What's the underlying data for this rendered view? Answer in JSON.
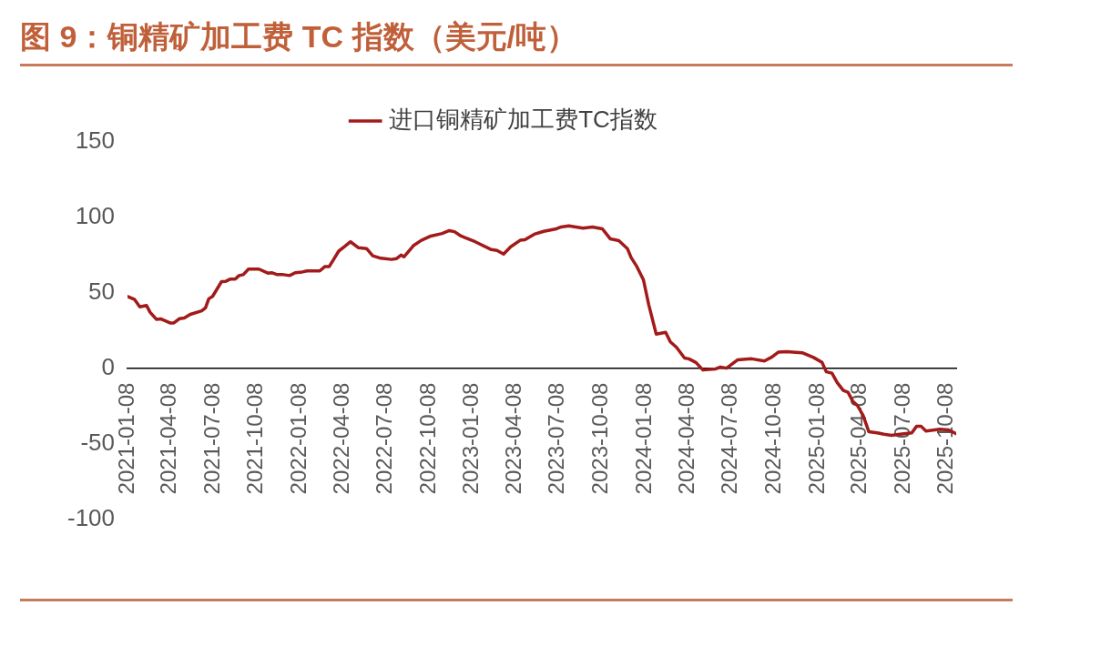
{
  "chart_data": {
    "type": "line",
    "title": "图 9：铜精矿加工费 TC 指数（美元/吨）",
    "x": [
      "2021-01-08",
      "2021-01-23",
      "2021-02-03",
      "2021-02-17",
      "2021-02-25",
      "2021-03-10",
      "2021-03-20",
      "2021-04-08",
      "2021-04-16",
      "2021-04-28",
      "2021-05-08",
      "2021-05-21",
      "2021-06-14",
      "2021-06-22",
      "2021-06-29",
      "2021-07-07",
      "2021-07-26",
      "2021-08-04",
      "2021-08-13",
      "2021-08-24",
      "2021-09-01",
      "2021-09-10",
      "2021-09-21",
      "2021-10-13",
      "2021-11-01",
      "2021-11-09",
      "2021-11-21",
      "2021-12-04",
      "2021-12-17",
      "2021-12-29",
      "2022-01-13",
      "2022-01-23",
      "2022-02-19",
      "2022-03-02",
      "2022-03-11",
      "2022-03-20",
      "2022-03-31",
      "2022-04-12",
      "2022-04-25",
      "2022-05-12",
      "2022-05-29",
      "2022-06-11",
      "2022-06-28",
      "2022-07-21",
      "2022-07-31",
      "2022-08-10",
      "2022-08-16",
      "2022-09-05",
      "2022-09-22",
      "2022-10-12",
      "2022-11-05",
      "2022-11-20",
      "2022-12-01",
      "2022-12-15",
      "2023-01-14",
      "2023-02-17",
      "2023-03-01",
      "2023-03-15",
      "2023-03-30",
      "2023-04-19",
      "2023-04-29",
      "2023-05-19",
      "2023-06-08",
      "2023-07-05",
      "2023-07-15",
      "2023-07-31",
      "2023-08-30",
      "2023-09-19",
      "2023-10-10",
      "2023-10-27",
      "2023-11-14",
      "2023-12-02",
      "2023-12-10",
      "2023-12-22",
      "2024-01-05",
      "2024-01-16",
      "2024-02-01",
      "2024-02-21",
      "2024-03-02",
      "2024-03-15",
      "2024-04-01",
      "2024-04-10",
      "2024-04-25",
      "2024-05-10",
      "2024-06-06",
      "2024-06-16",
      "2024-06-29",
      "2024-07-22",
      "2024-08-21",
      "2024-09-17",
      "2024-10-03",
      "2024-10-17",
      "2024-11-03",
      "2024-12-06",
      "2024-12-30",
      "2025-01-17",
      "2025-01-26",
      "2025-02-07",
      "2025-02-18",
      "2025-03-03",
      "2025-03-13",
      "2025-03-23",
      "2025-04-02",
      "2025-04-14",
      "2025-04-26",
      "2025-05-14",
      "2025-05-28",
      "2025-06-13",
      "2025-06-27",
      "2025-07-26",
      "2025-08-05",
      "2025-08-15",
      "2025-08-25",
      "2025-09-24",
      "2025-10-11",
      "2025-10-28"
    ],
    "series": [
      {
        "name": "进口铜精矿加工费TC指数",
        "color": "#a31a1a",
        "values": [
          47.6,
          45.5,
          40.7,
          41.6,
          37,
          32.4,
          32.6,
          30,
          30,
          32.8,
          33.3,
          35.7,
          38,
          40,
          46,
          47.6,
          57.4,
          57.6,
          59,
          59,
          61.4,
          62,
          65.7,
          65.7,
          63,
          63.3,
          62,
          62,
          61.4,
          63.3,
          63.8,
          64.5,
          64.5,
          67.4,
          67.4,
          72,
          77.6,
          80.5,
          83.8,
          79.8,
          79.3,
          74.5,
          72.9,
          72.1,
          72.6,
          75,
          73.8,
          81.2,
          84.8,
          87.6,
          89.3,
          91.2,
          90.5,
          87.6,
          83.8,
          78.6,
          78.1,
          75.7,
          80.5,
          84.8,
          85.2,
          88.8,
          90.7,
          92.4,
          93.6,
          94.3,
          92.9,
          93.6,
          92.4,
          85.7,
          84.5,
          79.3,
          73.3,
          67.4,
          58.6,
          42.4,
          22.6,
          23.8,
          17.4,
          13.8,
          6.7,
          6.2,
          3.8,
          -1.2,
          -0.5,
          0.7,
          0,
          5.5,
          6.2,
          4.8,
          7.4,
          10.7,
          11,
          10.2,
          7.1,
          3.8,
          -2.4,
          -3.3,
          -9.5,
          -14.8,
          -16,
          -21.9,
          -24.8,
          -31.4,
          -42.1,
          -42.9,
          -43.8,
          -44.5,
          -44,
          -42.9,
          -38.6,
          -38.6,
          -41.7,
          -40.5,
          -40.9,
          -43.4
        ]
      }
    ],
    "xlim": [
      "2021-01-08",
      "2025-10-28"
    ],
    "xticks": [
      "2021-01-08",
      "2021-04-08",
      "2021-07-08",
      "2021-10-08",
      "2022-01-08",
      "2022-04-08",
      "2022-07-08",
      "2022-10-08",
      "2023-01-08",
      "2023-04-08",
      "2023-07-08",
      "2023-10-08",
      "2024-01-08",
      "2024-04-08",
      "2024-07-08",
      "2024-10-08",
      "2025-01-08",
      "2025-04-08",
      "2025-07-08",
      "2025-10-08"
    ],
    "ylim": [
      -100,
      150
    ],
    "yticks": [
      -100,
      -50,
      0,
      50,
      100,
      150
    ],
    "grid": false,
    "legend": "top",
    "marker": "none",
    "line_style": "solid"
  }
}
